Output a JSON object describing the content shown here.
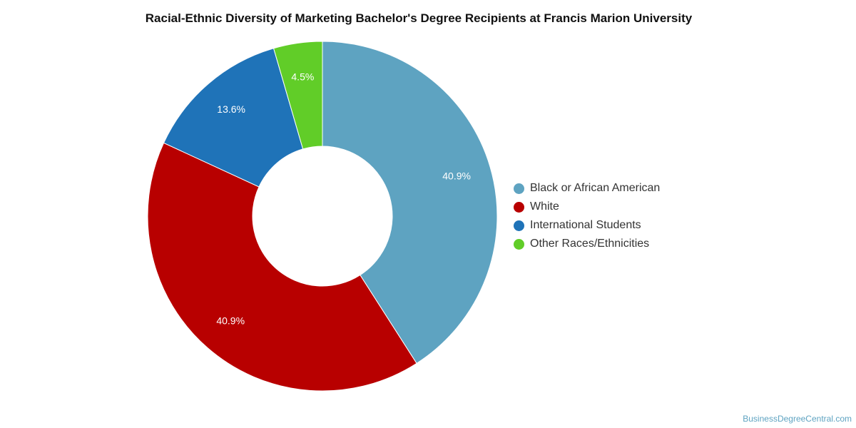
{
  "chart_data": {
    "type": "pie",
    "title": "Racial-Ethnic Diversity of Marketing Bachelor's Degree Recipients at Francis Marion University",
    "donut": true,
    "legend_position": "right",
    "slices": [
      {
        "name": "Black or African American",
        "value": 40.9,
        "label": "40.9%",
        "color": "#5ea3c1"
      },
      {
        "name": "White",
        "value": 40.9,
        "label": "40.9%",
        "color": "#b80000"
      },
      {
        "name": "International Students",
        "value": 13.6,
        "label": "13.6%",
        "color": "#1f73b8"
      },
      {
        "name": "Other Races/Ethnicities",
        "value": 4.5,
        "label": "4.5%",
        "color": "#61cd28"
      }
    ]
  },
  "credit": "BusinessDegreeCentral.com"
}
